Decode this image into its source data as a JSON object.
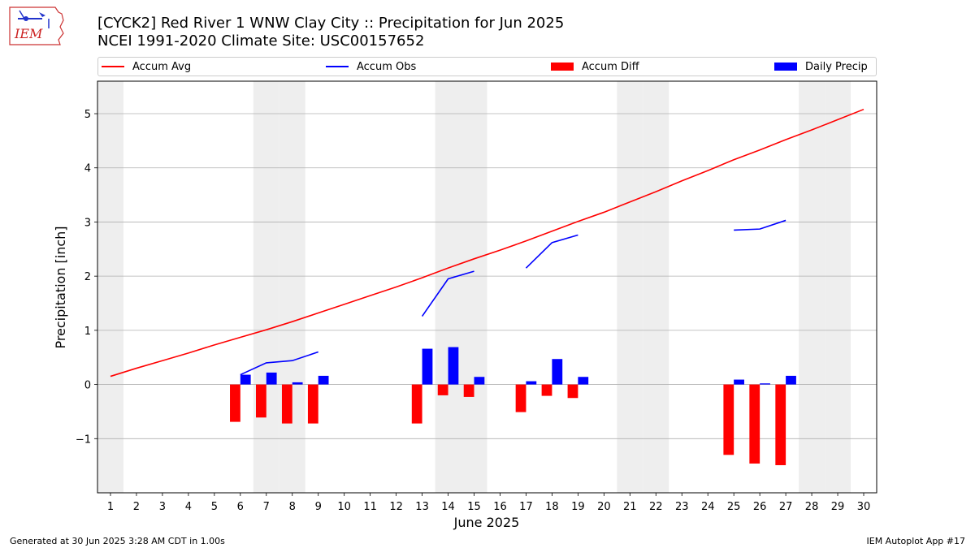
{
  "header": {
    "title": "[CYCK2] Red River 1 WNW Clay City :: Precipitation for Jun 2025",
    "subtitle": "NCEI 1991-2020 Climate Site: USC00157652",
    "logo_text": "IEM"
  },
  "legend": {
    "accum_avg": "Accum Avg",
    "accum_obs": "Accum Obs",
    "accum_diff": "Accum Diff",
    "daily_precip": "Daily Precip"
  },
  "footer": {
    "left": "Generated at 30 Jun 2025 3:28 AM CDT in 1.00s",
    "right": "IEM Autoplot App #17"
  },
  "colors": {
    "accum_avg": "#ff0000",
    "accum_obs": "#0000ff",
    "accum_diff": "#ff0000",
    "daily_precip": "#0000ff",
    "weekend_shade": "#eeeeee",
    "grid": "#b0b0b0"
  },
  "chart_data": {
    "type": "bar",
    "title": "[CYCK2] Red River 1 WNW Clay City :: Precipitation for Jun 2025",
    "xlabel": "June 2025",
    "ylabel": "Precipitation [inch]",
    "x": [
      1,
      2,
      3,
      4,
      5,
      6,
      7,
      8,
      9,
      10,
      11,
      12,
      13,
      14,
      15,
      16,
      17,
      18,
      19,
      20,
      21,
      22,
      23,
      24,
      25,
      26,
      27,
      28,
      29,
      30
    ],
    "xlim": [
      0.5,
      30.5
    ],
    "ylim": [
      -2.0,
      5.6
    ],
    "yticks": [
      -1,
      0,
      1,
      2,
      3,
      4,
      5
    ],
    "ytick_labels": [
      "−1",
      "0",
      "1",
      "2",
      "3",
      "4",
      "5"
    ],
    "grid": "horizontal",
    "legend_position": "top",
    "shaded_days": [
      1,
      7,
      8,
      14,
      15,
      21,
      22,
      28,
      29
    ],
    "series": [
      {
        "name": "Accum Avg",
        "type": "line",
        "values": [
          0.15,
          0.3,
          0.44,
          0.58,
          0.73,
          0.87,
          1.01,
          1.16,
          1.32,
          1.48,
          1.64,
          1.8,
          1.97,
          2.15,
          2.32,
          2.48,
          2.65,
          2.83,
          3.01,
          3.18,
          3.37,
          3.56,
          3.76,
          3.95,
          4.15,
          4.33,
          4.52,
          4.7,
          4.89,
          5.08
        ]
      },
      {
        "name": "Accum Obs",
        "type": "line",
        "segments": [
          {
            "x": [
              6,
              7,
              8,
              9
            ],
            "values": [
              0.18,
              0.4,
              0.44,
              0.6
            ]
          },
          {
            "x": [
              13,
              14,
              15
            ],
            "values": [
              1.26,
              1.95,
              2.09
            ]
          },
          {
            "x": [
              17,
              18,
              19
            ],
            "values": [
              2.15,
              2.62,
              2.76
            ]
          },
          {
            "x": [
              25,
              26,
              27
            ],
            "values": [
              2.85,
              2.87,
              3.03
            ]
          }
        ]
      },
      {
        "name": "Accum Diff",
        "type": "bar",
        "x": [
          6,
          7,
          8,
          9,
          13,
          14,
          15,
          17,
          18,
          19,
          25,
          26,
          27
        ],
        "values": [
          -0.69,
          -0.61,
          -0.72,
          -0.72,
          -0.72,
          -0.2,
          -0.23,
          -0.51,
          -0.21,
          -0.25,
          -1.3,
          -1.46,
          -1.49
        ]
      },
      {
        "name": "Daily Precip",
        "type": "bar",
        "x": [
          6,
          7,
          8,
          9,
          13,
          14,
          15,
          17,
          18,
          19,
          25,
          26,
          27
        ],
        "values": [
          0.18,
          0.22,
          0.04,
          0.16,
          0.66,
          0.69,
          0.14,
          0.06,
          0.47,
          0.14,
          0.09,
          0.02,
          0.16
        ]
      }
    ]
  }
}
